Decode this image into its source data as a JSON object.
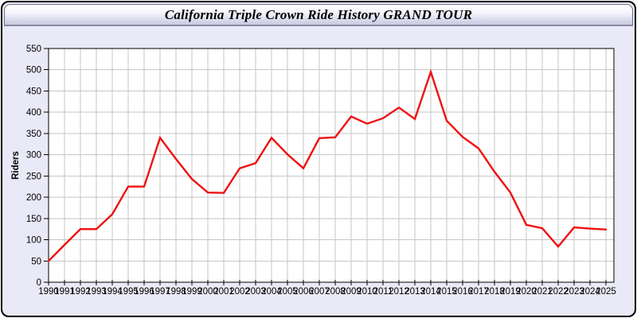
{
  "window": {
    "title": "California Triple Crown Ride History GRAND TOUR"
  },
  "chart_data": {
    "type": "line",
    "title": "California Triple Crown Ride History GRAND TOUR",
    "xlabel": "",
    "ylabel": "Riders",
    "ylim": [
      0,
      550
    ],
    "ytick_step": 50,
    "grid": true,
    "legend": "none",
    "line_color": "#ee1111",
    "plot_bg": "#ffffff",
    "panel_bg": "#e9e9f7",
    "grid_color": "#c6c6c6",
    "axis_color": "#000000",
    "categories": [
      "1990",
      "1991",
      "1992",
      "1993",
      "1994",
      "1995",
      "1996",
      "1997",
      "1998",
      "1999",
      "2000",
      "2001",
      "2002",
      "2003",
      "2004",
      "2005",
      "2006",
      "2007",
      "2008",
      "2009",
      "2010",
      "2011",
      "2012",
      "2013",
      "2014",
      "2015",
      "2016",
      "2017",
      "2018",
      "2019",
      "2020",
      "2021",
      "2022",
      "2023",
      "2024",
      "2025"
    ],
    "series": [
      {
        "name": "Riders",
        "values": [
          50,
          88,
          125,
          125,
          160,
          225,
          225,
          340,
          290,
          243,
          211,
          210,
          268,
          280,
          340,
          301,
          268,
          339,
          341,
          390,
          373,
          386,
          411,
          384,
          495,
          380,
          342,
          315,
          260,
          211,
          135,
          127,
          84,
          129,
          126,
          124
        ]
      }
    ]
  }
}
